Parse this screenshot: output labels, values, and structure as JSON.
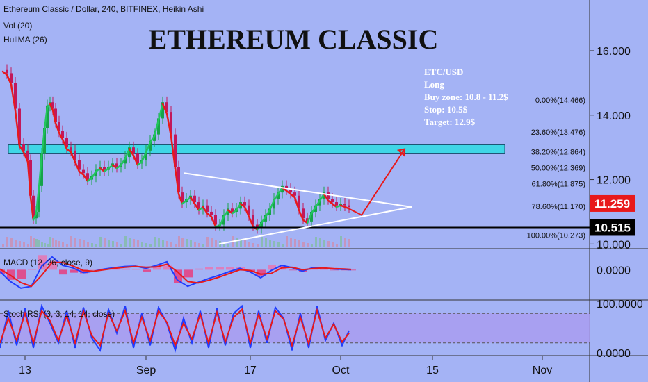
{
  "header": {
    "symbol_line": "Ethereum Classic / Dollar, 240, BITFINEX, Heikin Ashi",
    "indicator_1": "Vol (20)",
    "indicator_2": "HullMA (26)",
    "big_title": "ETHEREUM CLASSIC"
  },
  "trade_note": [
    "ETC/USD",
    "Long",
    "Buy zone: 10.8 - 11.2$",
    "Stop: 10.5$",
    "Target: 12.9$"
  ],
  "price_badges": [
    {
      "label": "11.259",
      "value": 11.259,
      "color": "#e8191b"
    },
    {
      "label": "10.515",
      "value": 10.515,
      "color": "#000000"
    }
  ],
  "colors": {
    "background": "#a4b3f5",
    "zone": "#3fd6e6",
    "up_candle": "#16a34a",
    "down_candle": "#c2185b",
    "hull_up": "#22c55e",
    "hull_down": "#e8191b",
    "macd_line": "#1f3cff",
    "signal_line": "#e8191b",
    "rsi_band": "#a99cf0"
  },
  "chart_data": [
    {
      "type": "candlestick",
      "name": "price",
      "y_axis_ticks": [
        "16.000",
        "14.000",
        "12.000",
        "10.000"
      ],
      "ylim": [
        9.9,
        17.4
      ],
      "x_ticks": [
        "13",
        "Sep",
        "17",
        "Oct",
        "15",
        "Nov"
      ],
      "x_tick_index": [
        36,
        210,
        360,
        490,
        622,
        780
      ],
      "fib_levels": [
        {
          "label": "0.00%(14.466)",
          "value": 14.466
        },
        {
          "label": "23.60%(13.476)",
          "value": 13.476
        },
        {
          "label": "38.20%(12.864)",
          "value": 12.864
        },
        {
          "label": "50.00%(12.369)",
          "value": 12.369
        },
        {
          "label": "61.80%(11.875)",
          "value": 11.875
        },
        {
          "label": "78.60%(11.170)",
          "value": 11.17
        },
        {
          "label": "100.00%(10.273)",
          "value": 10.273
        }
      ],
      "resistance_zone": [
        12.8,
        13.08
      ],
      "support_line": 10.515,
      "triangle": {
        "upper": [
          [
            265,
            12.2
          ],
          [
            592,
            11.15
          ]
        ],
        "lower": [
          [
            315,
            10.0
          ],
          [
            592,
            11.15
          ]
        ]
      },
      "projection": [
        [
          496,
          11.16
        ],
        [
          520,
          10.9
        ],
        [
          582,
          12.95
        ]
      ],
      "closes": [
        [
          4,
          15.4
        ],
        [
          10,
          15.3
        ],
        [
          16,
          15.0
        ],
        [
          22,
          14.2
        ],
        [
          28,
          13.1
        ],
        [
          34,
          12.9
        ],
        [
          40,
          12.6
        ],
        [
          44,
          11.5
        ],
        [
          48,
          10.8
        ],
        [
          52,
          11.0
        ],
        [
          56,
          11.8
        ],
        [
          60,
          12.8
        ],
        [
          64,
          13.6
        ],
        [
          68,
          14.3
        ],
        [
          72,
          14.4
        ],
        [
          76,
          14.2
        ],
        [
          80,
          13.8
        ],
        [
          85,
          13.5
        ],
        [
          90,
          13.3
        ],
        [
          96,
          13.0
        ],
        [
          102,
          12.9
        ],
        [
          108,
          12.6
        ],
        [
          114,
          12.3
        ],
        [
          120,
          12.2
        ],
        [
          126,
          12.0
        ],
        [
          132,
          12.1
        ],
        [
          138,
          12.3
        ],
        [
          144,
          12.4
        ],
        [
          150,
          12.3
        ],
        [
          156,
          12.4
        ],
        [
          162,
          12.5
        ],
        [
          168,
          12.4
        ],
        [
          174,
          12.5
        ],
        [
          180,
          12.7
        ],
        [
          186,
          13.0
        ],
        [
          192,
          12.8
        ],
        [
          198,
          12.5
        ],
        [
          204,
          12.6
        ],
        [
          210,
          12.9
        ],
        [
          216,
          13.2
        ],
        [
          222,
          13.4
        ],
        [
          228,
          13.9
        ],
        [
          234,
          14.4
        ],
        [
          240,
          14.1
        ],
        [
          246,
          13.4
        ],
        [
          252,
          12.4
        ],
        [
          257,
          11.6
        ],
        [
          262,
          11.3
        ],
        [
          268,
          11.4
        ],
        [
          274,
          11.5
        ],
        [
          280,
          11.3
        ],
        [
          286,
          11.1
        ],
        [
          292,
          11.2
        ],
        [
          298,
          11.0
        ],
        [
          304,
          10.9
        ],
        [
          310,
          10.6
        ],
        [
          316,
          10.6
        ],
        [
          322,
          10.9
        ],
        [
          328,
          11.1
        ],
        [
          334,
          11.0
        ],
        [
          340,
          11.1
        ],
        [
          346,
          11.3
        ],
        [
          352,
          11.2
        ],
        [
          358,
          10.9
        ],
        [
          364,
          10.6
        ],
        [
          370,
          10.5
        ],
        [
          376,
          10.7
        ],
        [
          382,
          10.9
        ],
        [
          388,
          11.1
        ],
        [
          394,
          11.4
        ],
        [
          400,
          11.6
        ],
        [
          406,
          11.8
        ],
        [
          412,
          11.7
        ],
        [
          418,
          11.6
        ],
        [
          424,
          11.5
        ],
        [
          430,
          11.1
        ],
        [
          436,
          10.8
        ],
        [
          442,
          10.7
        ],
        [
          448,
          11.0
        ],
        [
          454,
          11.2
        ],
        [
          460,
          11.4
        ],
        [
          466,
          11.6
        ],
        [
          472,
          11.4
        ],
        [
          478,
          11.3
        ],
        [
          484,
          11.2
        ],
        [
          490,
          11.25
        ],
        [
          496,
          11.2
        ],
        [
          502,
          11.15
        ]
      ]
    },
    {
      "type": "line",
      "name": "MACD (12, 26, close, 9)",
      "label": "MACD (12, 26, close, 9)",
      "y_axis_ticks": [
        "0.0000"
      ],
      "ylim": [
        -0.75,
        0.5
      ],
      "x": [
        0,
        15,
        30,
        45,
        60,
        75,
        90,
        105,
        120,
        135,
        150,
        165,
        180,
        195,
        210,
        225,
        240,
        255,
        270,
        285,
        300,
        315,
        330,
        345,
        360,
        375,
        390,
        405,
        420,
        435,
        450,
        465,
        480,
        495,
        505
      ],
      "series": [
        {
          "name": "MACD",
          "values": [
            -0.05,
            -0.32,
            -0.5,
            -0.45,
            0.1,
            0.35,
            0.12,
            0.05,
            -0.08,
            -0.04,
            0.02,
            0.06,
            0.09,
            0.1,
            0.04,
            0.12,
            0.22,
            -0.28,
            -0.45,
            -0.34,
            -0.24,
            -0.15,
            -0.05,
            0.04,
            -0.06,
            -0.22,
            -0.02,
            0.12,
            0.06,
            -0.04,
            0.06,
            0.05,
            0.02,
            0.01,
            0.0
          ]
        },
        {
          "name": "Signal",
          "values": [
            0.02,
            -0.15,
            -0.35,
            -0.45,
            -0.15,
            0.2,
            0.2,
            0.1,
            -0.02,
            -0.04,
            0.0,
            0.04,
            0.07,
            0.09,
            0.07,
            0.08,
            0.15,
            -0.05,
            -0.32,
            -0.36,
            -0.29,
            -0.2,
            -0.1,
            0.0,
            -0.02,
            -0.12,
            -0.1,
            0.05,
            0.07,
            0.0,
            0.03,
            0.05,
            0.03,
            0.02,
            0.01
          ]
        }
      ]
    },
    {
      "type": "line",
      "name": "Stoch RSI (3, 3, 14, 14, close)",
      "label": "Stoch RSI (3, 3, 14, 14, close)",
      "y_axis_ticks": [
        "100.0000",
        "0.0000"
      ],
      "ylim": [
        0,
        100
      ],
      "band": [
        20,
        80
      ],
      "x": [
        0,
        12,
        24,
        36,
        48,
        60,
        72,
        84,
        96,
        108,
        120,
        132,
        144,
        156,
        168,
        180,
        192,
        204,
        216,
        228,
        240,
        252,
        264,
        276,
        288,
        300,
        312,
        324,
        336,
        348,
        360,
        372,
        384,
        396,
        408,
        420,
        432,
        444,
        456,
        468,
        480,
        492,
        502
      ],
      "series": [
        {
          "name": "K",
          "values": [
            10,
            85,
            15,
            90,
            10,
            95,
            60,
            20,
            85,
            10,
            92,
            30,
            5,
            88,
            40,
            95,
            10,
            80,
            15,
            92,
            60,
            5,
            70,
            20,
            85,
            10,
            90,
            15,
            80,
            95,
            10,
            85,
            20,
            92,
            70,
            5,
            80,
            10,
            95,
            25,
            60,
            15,
            45
          ]
        },
        {
          "name": "D",
          "values": [
            20,
            70,
            25,
            80,
            20,
            85,
            65,
            25,
            75,
            20,
            85,
            35,
            15,
            80,
            45,
            85,
            20,
            72,
            25,
            85,
            62,
            15,
            60,
            28,
            78,
            20,
            82,
            22,
            72,
            88,
            20,
            78,
            28,
            85,
            68,
            15,
            72,
            18,
            86,
            30,
            58,
            22,
            40
          ]
        }
      ]
    }
  ]
}
